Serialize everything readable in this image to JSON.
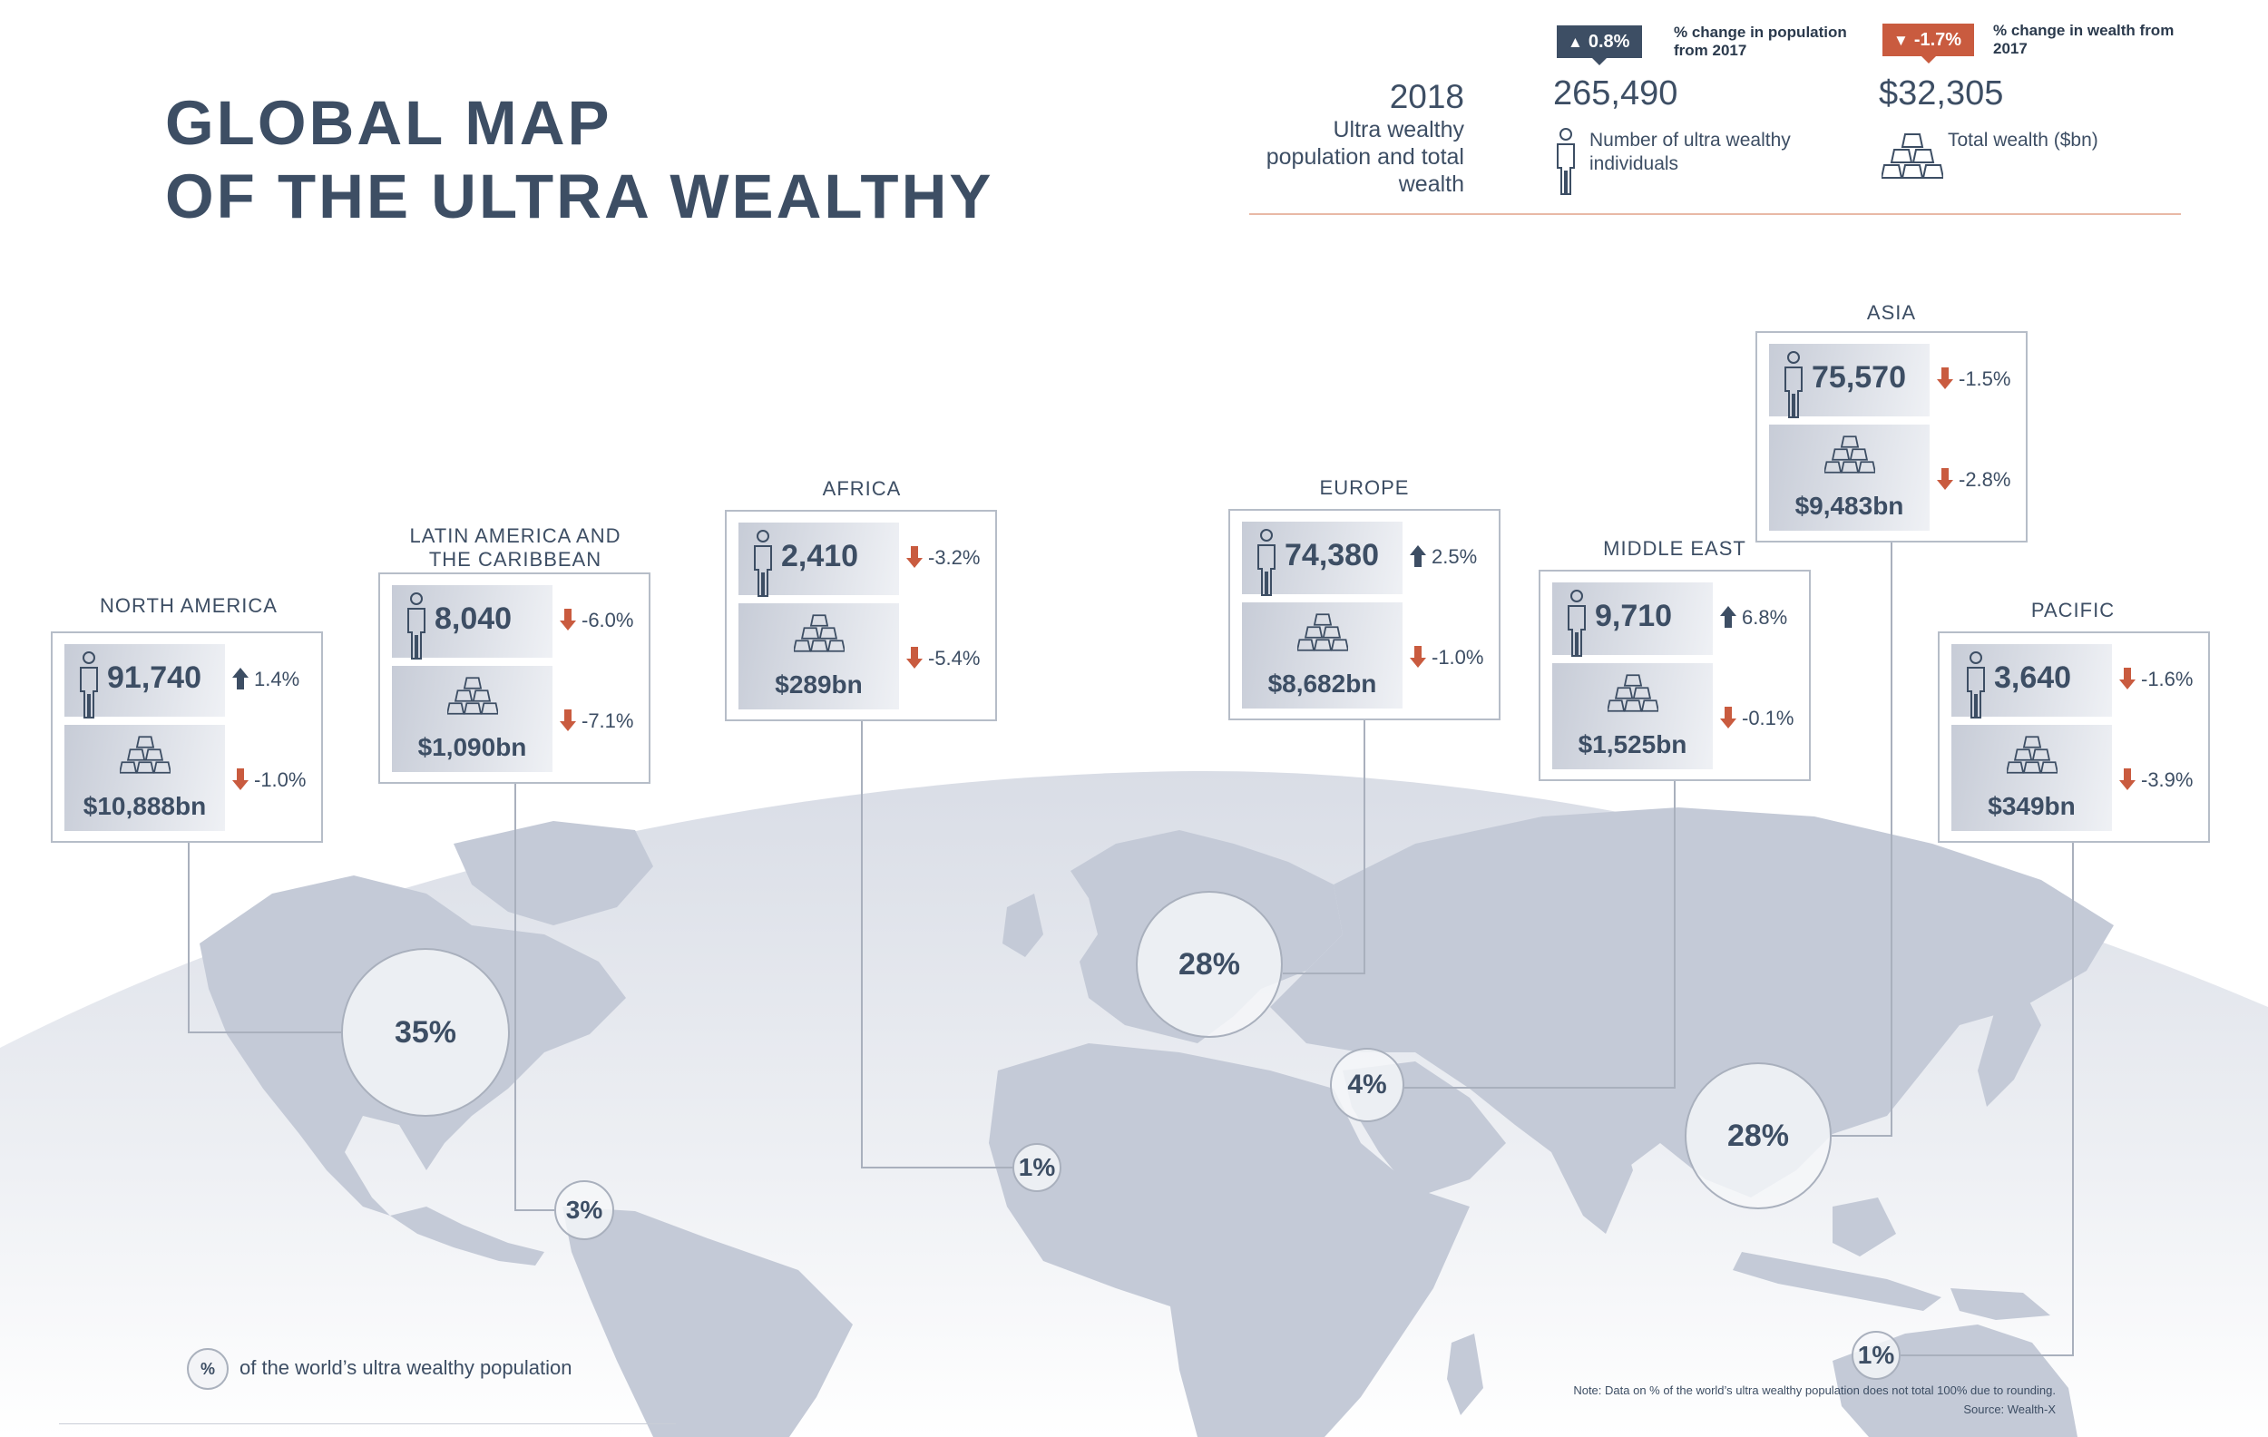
{
  "title": {
    "line1": "GLOBAL MAP",
    "line2": "OF THE ULTRA WEALTHY"
  },
  "summary": {
    "year": "2018",
    "description": "Ultra wealthy population and total wealth",
    "population": {
      "badge": "0.8%",
      "badge_direction": "up",
      "badge_caption": "% change in population from 2017",
      "value": "265,490",
      "label": "Number of ultra wealthy individuals"
    },
    "wealth": {
      "badge": "-1.7%",
      "badge_direction": "down",
      "badge_caption": "% change in wealth from 2017",
      "value": "$32,305",
      "label": "Total wealth ($bn)"
    }
  },
  "regions": [
    {
      "id": "north-america",
      "name": "NORTH AMERICA",
      "population": "91,740",
      "population_change": "1.4%",
      "population_dir": "up",
      "wealth": "$10,888bn",
      "wealth_change": "-1.0%",
      "wealth_dir": "down",
      "share": "35%"
    },
    {
      "id": "latin-america",
      "name": "LATIN AMERICA AND THE CARIBBEAN",
      "population": "8,040",
      "population_change": "-6.0%",
      "population_dir": "down",
      "wealth": "$1,090bn",
      "wealth_change": "-7.1%",
      "wealth_dir": "down",
      "share": "3%"
    },
    {
      "id": "africa",
      "name": "AFRICA",
      "population": "2,410",
      "population_change": "-3.2%",
      "population_dir": "down",
      "wealth": "$289bn",
      "wealth_change": "-5.4%",
      "wealth_dir": "down",
      "share": "1%"
    },
    {
      "id": "europe",
      "name": "EUROPE",
      "population": "74,380",
      "population_change": "2.5%",
      "population_dir": "up",
      "wealth": "$8,682bn",
      "wealth_change": "-1.0%",
      "wealth_dir": "down",
      "share": "28%"
    },
    {
      "id": "middle-east",
      "name": "MIDDLE EAST",
      "population": "9,710",
      "population_change": "6.8%",
      "population_dir": "up",
      "wealth": "$1,525bn",
      "wealth_change": "-0.1%",
      "wealth_dir": "down",
      "share": "4%"
    },
    {
      "id": "asia",
      "name": "ASIA",
      "population": "75,570",
      "population_change": "-1.5%",
      "population_dir": "down",
      "wealth": "$9,483bn",
      "wealth_change": "-2.8%",
      "wealth_dir": "down",
      "share": "28%"
    },
    {
      "id": "pacific",
      "name": "PACIFIC",
      "population": "3,640",
      "population_change": "-1.6%",
      "population_dir": "down",
      "wealth": "$349bn",
      "wealth_change": "-3.9%",
      "wealth_dir": "down",
      "share": "1%"
    }
  ],
  "legend": {
    "symbol": "%",
    "text": "of the world’s ultra wealthy population"
  },
  "footer": {
    "note": "Note: Data on % of the world’s ultra wealthy population does not total 100% due to rounding.",
    "source": "Source: Wealth-X"
  },
  "colors": {
    "up": "#3d4e64",
    "down": "#c95b3f",
    "text": "#3d4e64",
    "land": "#c4cad7"
  },
  "icons": {
    "population": "person-icon",
    "wealth": "gold-bars-icon",
    "up": "arrow-up-icon",
    "down": "arrow-down-icon"
  }
}
